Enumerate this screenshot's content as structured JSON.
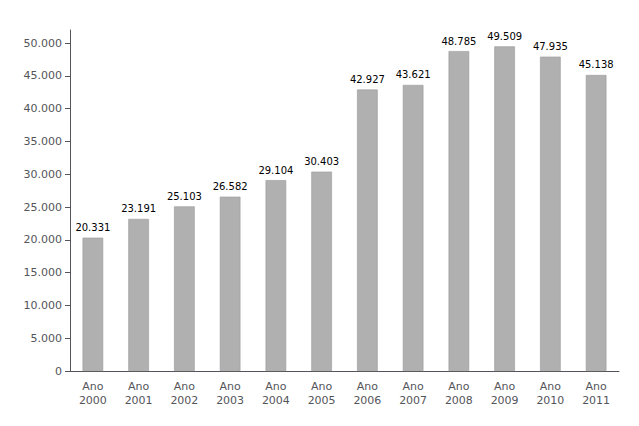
{
  "chart_data": {
    "type": "bar",
    "categories": [
      "Ano\n2000",
      "Ano\n2001",
      "Ano\n2002",
      "Ano\n2003",
      "Ano\n2004",
      "Ano\n2005",
      "Ano\n2006",
      "Ano\n2007",
      "Ano\n2008",
      "Ano\n2009",
      "Ano\n2010",
      "Ano\n2011"
    ],
    "values": [
      20331,
      23191,
      25103,
      26582,
      29104,
      30403,
      42927,
      43621,
      48785,
      49509,
      47935,
      45138
    ],
    "value_labels": [
      "20.331",
      "23.191",
      "25.103",
      "26.582",
      "29.104",
      "30.403",
      "42.927",
      "43.621",
      "48.785",
      "49.509",
      "47.935",
      "45.138"
    ],
    "data_labels": true,
    "color": "#b0b0b0",
    "ylim": [
      0,
      52000
    ],
    "yticks": [
      0,
      {
        "value": 5000,
        "label": "5.000"
      },
      {
        "value": 10000,
        "label": "10.000"
      },
      {
        "value": 15000,
        "label": "15.000"
      },
      {
        "value": 20000,
        "label": "20.000"
      },
      {
        "value": 25000,
        "label": "25.000"
      },
      {
        "value": 30000,
        "label": "30.000"
      },
      {
        "value": 35000,
        "label": "35.000"
      },
      {
        "value": 40000,
        "label": "40.000"
      },
      {
        "value": 45000,
        "label": "45.000"
      },
      {
        "value": 50000,
        "label": "50.000"
      }
    ],
    "grid": false
  }
}
